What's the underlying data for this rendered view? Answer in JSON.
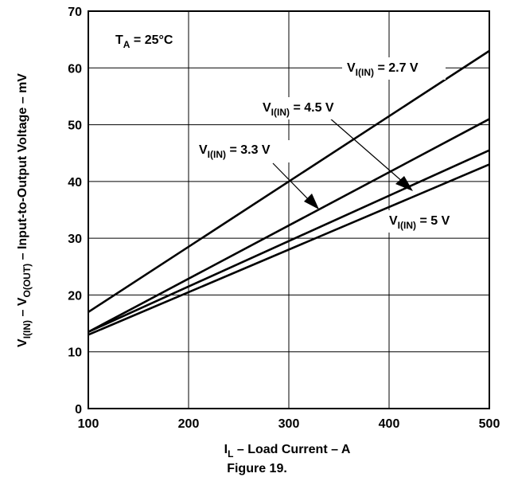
{
  "chart_data": {
    "type": "line",
    "xlabel": "I_L – Load Current – A",
    "ylabel": "V_I(IN) – V_O(OUT) – Input-to-Output Voltage – mV",
    "xlim": [
      100,
      500
    ],
    "ylim": [
      0,
      70
    ],
    "x_ticks": [
      100,
      200,
      300,
      400,
      500
    ],
    "y_ticks": [
      0,
      10,
      20,
      30,
      40,
      50,
      60,
      70
    ],
    "grid": true,
    "x": [
      100,
      500
    ],
    "series": [
      {
        "name": "V_I(IN) = 2.7 V",
        "values": [
          17,
          63
        ]
      },
      {
        "name": "V_I(IN) = 3.3 V",
        "values": [
          13.5,
          51
        ]
      },
      {
        "name": "V_I(IN) = 4.5 V",
        "values": [
          13.5,
          45.5
        ]
      },
      {
        "name": "V_I(IN) = 5 V",
        "values": [
          13,
          43
        ]
      }
    ],
    "annotation": "T_A = 25°C"
  },
  "labels": {
    "ta_main": "T",
    "ta_sub": "A",
    "ta_rest": " = 25°C",
    "v27_main": "V",
    "v27_sub": "I(IN)",
    "v27_rest": " = 2.7 V",
    "v45_main": "V",
    "v45_sub": "I(IN)",
    "v45_rest": " = 4.5 V",
    "v33_main": "V",
    "v33_sub": "I(IN)",
    "v33_rest": " = 3.3 V",
    "v5_main": "V",
    "v5_sub": "I(IN)",
    "v5_rest": " = 5 V",
    "x_main": "I",
    "x_sub": "L",
    "x_rest": " – Load Current – A",
    "y_p1": "V",
    "y_s1": "I(IN)",
    "y_p2": " – V",
    "y_s2": "O(OUT)",
    "y_p3": " – Input-to-Output Voltage – mV",
    "caption": "Figure 19."
  }
}
